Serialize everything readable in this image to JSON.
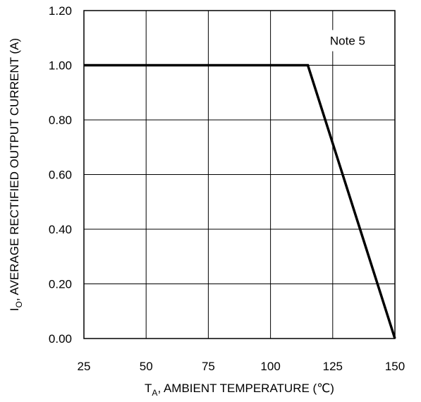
{
  "chart_data": {
    "type": "line",
    "title": "",
    "xlabel": {
      "prefix": "T",
      "subscript": "A",
      "text": ", AMBIENT TEMPERATURE (℃)"
    },
    "ylabel": {
      "prefix": "I",
      "subscript": "O",
      "text": ", AVERAGE RECTIFIED OUTPUT CURRENT (A)"
    },
    "xlim": [
      25,
      150
    ],
    "ylim": [
      0,
      1.2
    ],
    "x_ticks": [
      25,
      50,
      75,
      100,
      125,
      150
    ],
    "x_tick_labels": [
      "25",
      "50",
      "75",
      "100",
      "125",
      "150"
    ],
    "y_ticks": [
      0,
      0.2,
      0.4,
      0.6,
      0.8,
      1.0,
      1.2
    ],
    "y_tick_labels": [
      "0.00",
      "0.20",
      "0.40",
      "0.60",
      "0.80",
      "1.00",
      "1.20"
    ],
    "grid": true,
    "legend": "none",
    "line_color": "#000000",
    "grid_color": "#000000",
    "series": [
      {
        "x": [
          25,
          115,
          150
        ],
        "y": [
          1.0,
          1.0,
          0.0
        ]
      }
    ],
    "annotations": [
      {
        "text": "Note 5",
        "x": 131,
        "y": 1.09
      }
    ]
  }
}
